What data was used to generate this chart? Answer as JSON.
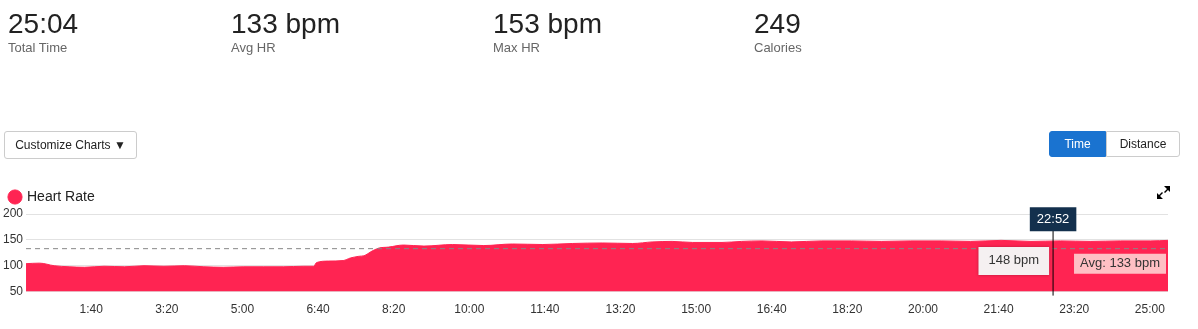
{
  "chart_data": {
    "type": "area",
    "annotations": [
      "25:04",
      "Total Time",
      "133 bpm",
      "Avg HR",
      "153 bpm",
      "Max HR",
      "249",
      "Calories",
      "Customize Charts ▼",
      "Time",
      "Distance",
      {
        "text": "22:52",
        "x": 22.867,
        "y": 190
      },
      {
        "text": "148 bpm",
        "x": 22.867,
        "y": 148
      }
    ],
    "x": [
      0.23,
      0.53,
      0.85,
      1.18,
      1.52,
      1.95,
      2.4,
      2.83,
      3.27,
      3.72,
      4.15,
      4.58,
      5.03,
      5.47,
      5.9,
      6.35,
      6.57,
      6.63,
      6.9,
      7.22,
      7.38,
      7.55,
      7.7,
      7.83,
      8,
      8.22,
      8.55,
      9,
      9.63,
      10.32,
      10.95,
      11.62,
      12.27,
      12.93,
      13.6,
      14.03,
      14.47,
      14.92,
      15.57,
      16,
      16.45,
      17.1,
      17.77,
      18.42,
      19.08,
      19.73,
      20.4,
      21.05,
      21.72,
      22.38,
      23.03,
      23.7,
      24.35,
      25.02,
      25.4
    ],
    "series": [
      {
        "name": "Heart Rate",
        "color": "#ff2452",
        "values": [
          104,
          105,
          100,
          98,
          97,
          99,
          98,
          100,
          99,
          100,
          98,
          97,
          98,
          98,
          98,
          99,
          99,
          106,
          109,
          110,
          115,
          118,
          120,
          127,
          134,
          136,
          140,
          138,
          141,
          139,
          142,
          141,
          143,
          144,
          143,
          146,
          147,
          145,
          145,
          147,
          148,
          146,
          148,
          148,
          147,
          148,
          148,
          147,
          149,
          147,
          148,
          147,
          148,
          148,
          149
        ]
      }
    ],
    "xlim": [
      0.23,
      25.4
    ],
    "xticks": [
      {
        "value": 1.667,
        "label": "1:40"
      },
      {
        "value": 3.333,
        "label": "3:20"
      },
      {
        "value": 5,
        "label": "5:00"
      },
      {
        "value": 6.667,
        "label": "6:40"
      },
      {
        "value": 8.333,
        "label": "8:20"
      },
      {
        "value": 10,
        "label": "10:00"
      },
      {
        "value": 11.667,
        "label": "11:40"
      },
      {
        "value": 13.333,
        "label": "13:20"
      },
      {
        "value": 15,
        "label": "15:00"
      },
      {
        "value": 16.667,
        "label": "16:40"
      },
      {
        "value": 18.333,
        "label": "18:20"
      },
      {
        "value": 20,
        "label": "20:00"
      },
      {
        "value": 21.667,
        "label": "21:40"
      },
      {
        "value": 23.333,
        "label": "23:20"
      },
      {
        "value": 25,
        "label": "25:00"
      }
    ],
    "ylim": [
      50,
      200
    ],
    "yticks": [
      50,
      100,
      150,
      200
    ],
    "grid": "y",
    "legend": "top left",
    "marker": "none",
    "ref_lines": [
      {
        "axis": "y",
        "value": 133,
        "label": "Avg: 133 bpm",
        "color": "#888888",
        "line_style": "dashed"
      },
      {
        "axis": "x",
        "value": 22.867,
        "color": "#000000",
        "line_style": "solid"
      }
    ]
  }
}
